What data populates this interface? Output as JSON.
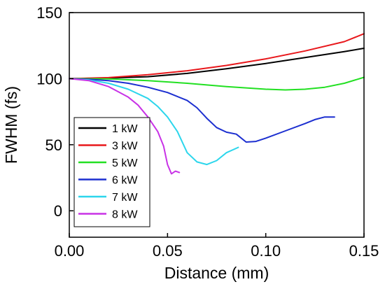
{
  "chart_data": {
    "type": "line",
    "title": "",
    "xlabel": "Distance (mm)",
    "ylabel": "FWHM (fs)",
    "xlim": [
      0,
      0.15
    ],
    "ylim": [
      -20,
      150
    ],
    "xticks": [
      "0.00",
      "0.05",
      "0.10",
      "0.15"
    ],
    "xtick_values": [
      0,
      0.05,
      0.1,
      0.15
    ],
    "yticks": [
      "0",
      "50",
      "100",
      "150"
    ],
    "ytick_values": [
      0,
      50,
      100,
      150
    ],
    "grid": false,
    "legend_position": "bottom-left",
    "series": [
      {
        "name": "1 kW",
        "color": "#000000",
        "x": [
          0,
          0.02,
          0.04,
          0.06,
          0.08,
          0.1,
          0.12,
          0.14,
          0.15
        ],
        "y": [
          100,
          100.5,
          101.5,
          104,
          107.5,
          111.5,
          116,
          120.5,
          123
        ]
      },
      {
        "name": "3 kW",
        "color": "#e8181c",
        "x": [
          0,
          0.02,
          0.04,
          0.06,
          0.08,
          0.1,
          0.12,
          0.14,
          0.15
        ],
        "y": [
          100,
          100.8,
          103,
          106,
          110,
          115,
          121,
          128,
          134
        ]
      },
      {
        "name": "5 kW",
        "color": "#22e022",
        "x": [
          0,
          0.02,
          0.04,
          0.06,
          0.08,
          0.1,
          0.11,
          0.12,
          0.13,
          0.14,
          0.15
        ],
        "y": [
          100,
          99.8,
          98.5,
          96.5,
          94,
          92,
          91.5,
          92,
          93.5,
          96.5,
          101
        ]
      },
      {
        "name": "6 kW",
        "color": "#1c2fd0",
        "x": [
          0,
          0.01,
          0.02,
          0.03,
          0.04,
          0.05,
          0.06,
          0.065,
          0.07,
          0.075,
          0.08,
          0.085,
          0.09,
          0.095,
          0.1,
          0.11,
          0.12,
          0.125,
          0.13,
          0.135
        ],
        "y": [
          100,
          99.5,
          98.5,
          96.5,
          93.5,
          89.5,
          83.5,
          78,
          70,
          63,
          59.5,
          58,
          52,
          52.5,
          55,
          60.5,
          66,
          69,
          71,
          71
        ]
      },
      {
        "name": "7 kW",
        "color": "#2cd6ec",
        "x": [
          0,
          0.01,
          0.02,
          0.03,
          0.04,
          0.045,
          0.05,
          0.055,
          0.06,
          0.065,
          0.07,
          0.075,
          0.08,
          0.086
        ],
        "y": [
          100,
          99,
          96.5,
          92,
          85,
          79,
          71,
          60,
          44,
          37,
          35,
          38,
          44,
          48
        ]
      },
      {
        "name": "8 kW",
        "color": "#c832e6",
        "x": [
          0,
          0.01,
          0.02,
          0.03,
          0.035,
          0.04,
          0.045,
          0.048,
          0.05,
          0.052,
          0.054,
          0.056
        ],
        "y": [
          100,
          98.5,
          94,
          86,
          80,
          71,
          60,
          49,
          35,
          28,
          30,
          29
        ]
      }
    ]
  }
}
